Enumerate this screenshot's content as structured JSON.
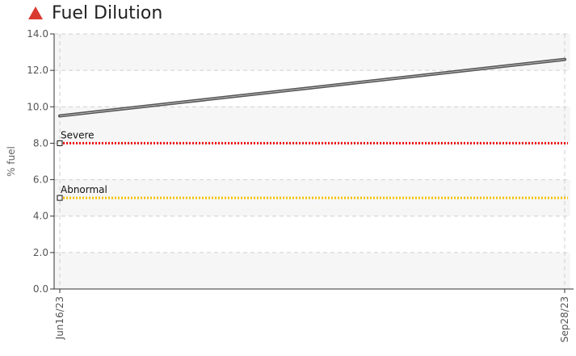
{
  "header": {
    "title": "Fuel Dilution",
    "status_icon": "warning-triangle-icon",
    "status_color": "#d93a30"
  },
  "chart_data": {
    "type": "line",
    "title": "Fuel Dilution",
    "ylabel": "% fuel",
    "xlabel": "",
    "ylim": [
      0,
      14
    ],
    "y_ticks": [
      "0.0",
      "2.0",
      "4.0",
      "6.0",
      "8.0",
      "10.0",
      "12.0",
      "14.0"
    ],
    "x_ticks": [
      "Jun16/23",
      "Sep28/23"
    ],
    "grid": true,
    "series": [
      {
        "color": "#555555",
        "x": [
          "Jun16/23",
          "Sep28/23"
        ],
        "values": [
          9.5,
          12.6
        ]
      }
    ],
    "thresholds": [
      {
        "label": "Severe",
        "value": 8.0,
        "color": "#ee1111"
      },
      {
        "label": "Abnormal",
        "value": 5.0,
        "color": "#f2c200"
      }
    ]
  }
}
